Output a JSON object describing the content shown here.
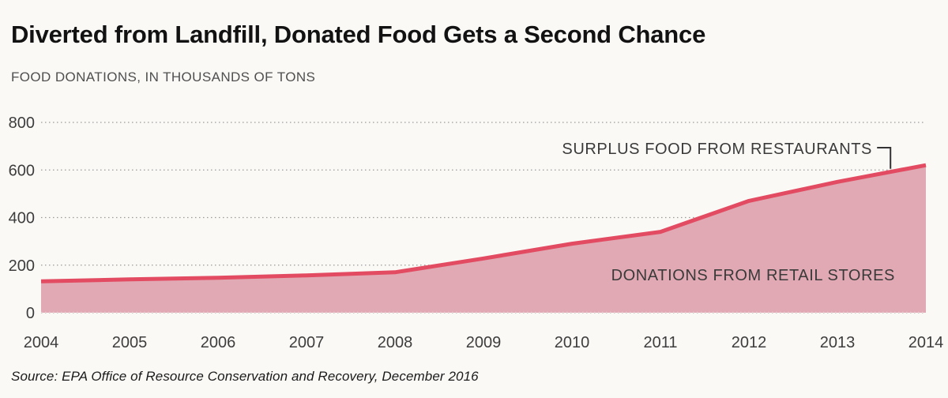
{
  "header": {
    "title": "Diverted from Landfill, Donated Food Gets a Second Chance",
    "subtitle": "FOOD DONATIONS, IN THOUSANDS OF TONS"
  },
  "footer": {
    "source": "Source: EPA Office of Resource Conservation and Recovery, December 2016"
  },
  "chart_data": {
    "type": "area",
    "title": "Diverted from Landfill, Donated Food Gets a Second Chance",
    "unit_label": "FOOD DONATIONS, IN THOUSANDS OF TONS",
    "x": [
      2004,
      2005,
      2006,
      2007,
      2008,
      2009,
      2010,
      2011,
      2012,
      2013,
      2014
    ],
    "series": [
      {
        "name": "DONATIONS FROM RETAIL STORES",
        "values": [
          132,
          140,
          147,
          157,
          170,
          228,
          290,
          340,
          470,
          550,
          620
        ]
      }
    ],
    "labels": {
      "area_label": "DONATIONS FROM RETAIL STORES",
      "line_label": "SURPLUS FOOD FROM RESTAURANTS"
    },
    "annotations": [
      {
        "text": "SURPLUS FOOD FROM RESTAURANTS",
        "points_to": {
          "x": 2013.6,
          "y": 592
        }
      }
    ],
    "yticks": [
      0,
      200,
      400,
      600,
      800
    ],
    "ylim": [
      0,
      800
    ],
    "xlim": [
      2004,
      2014
    ],
    "grid": "horizontal-dotted",
    "legend": "none-direct-labels",
    "colors": {
      "area_fill": "#e0a9b3",
      "line": "#e24b61",
      "background": "#faf9f6",
      "grid": "#9a9a9a",
      "pointer": "#333333"
    }
  }
}
